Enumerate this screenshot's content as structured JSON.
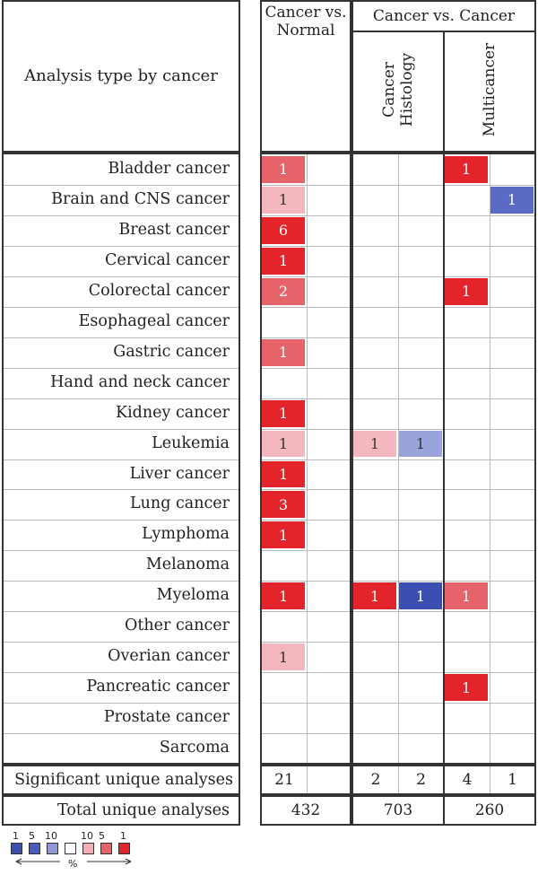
{
  "header": {
    "row_header": "Analysis type by cancer",
    "col_cancer_vs_normal": "Cancer vs. Normal",
    "col_cancer_vs_cancer": "Cancer vs. Cancer",
    "sub_cancer_histology": "Cancer Histology",
    "sub_multicancer": "Multicancer"
  },
  "rows": [
    {
      "label": "Bladder cancer",
      "cvn": "1",
      "hist_up": "",
      "hist_down": "",
      "multi_up": "1",
      "multi_down": ""
    },
    {
      "label": "Brain and CNS cancer",
      "cvn": "1",
      "hist_up": "",
      "hist_down": "",
      "multi_up": "",
      "multi_down": "1"
    },
    {
      "label": "Breast cancer",
      "cvn": "6",
      "hist_up": "",
      "hist_down": "",
      "multi_up": "",
      "multi_down": ""
    },
    {
      "label": "Cervical cancer",
      "cvn": "1",
      "hist_up": "",
      "hist_down": "",
      "multi_up": "",
      "multi_down": ""
    },
    {
      "label": "Colorectal cancer",
      "cvn": "2",
      "hist_up": "",
      "hist_down": "",
      "multi_up": "1",
      "multi_down": ""
    },
    {
      "label": "Esophageal cancer",
      "cvn": "",
      "hist_up": "",
      "hist_down": "",
      "multi_up": "",
      "multi_down": ""
    },
    {
      "label": "Gastric cancer",
      "cvn": "1",
      "hist_up": "",
      "hist_down": "",
      "multi_up": "",
      "multi_down": ""
    },
    {
      "label": "Hand and neck cancer",
      "cvn": "",
      "hist_up": "",
      "hist_down": "",
      "multi_up": "",
      "multi_down": ""
    },
    {
      "label": "Kidney cancer",
      "cvn": "1",
      "hist_up": "",
      "hist_down": "",
      "multi_up": "",
      "multi_down": ""
    },
    {
      "label": "Leukemia",
      "cvn": "1",
      "hist_up": "1",
      "hist_down": "1",
      "multi_up": "",
      "multi_down": ""
    },
    {
      "label": "Liver cancer",
      "cvn": "1",
      "hist_up": "",
      "hist_down": "",
      "multi_up": "",
      "multi_down": ""
    },
    {
      "label": "Lung cancer",
      "cvn": "3",
      "hist_up": "",
      "hist_down": "",
      "multi_up": "",
      "multi_down": ""
    },
    {
      "label": "Lymphoma",
      "cvn": "1",
      "hist_up": "",
      "hist_down": "",
      "multi_up": "",
      "multi_down": ""
    },
    {
      "label": "Melanoma",
      "cvn": "",
      "hist_up": "",
      "hist_down": "",
      "multi_up": "",
      "multi_down": ""
    },
    {
      "label": "Myeloma",
      "cvn": "1",
      "hist_up": "1",
      "hist_down": "1",
      "multi_up": "1",
      "multi_down": ""
    },
    {
      "label": "Other cancer",
      "cvn": "",
      "hist_up": "",
      "hist_down": "",
      "multi_up": "",
      "multi_down": ""
    },
    {
      "label": "Overian cancer",
      "cvn": "1",
      "hist_up": "",
      "hist_down": "",
      "multi_up": "",
      "multi_down": ""
    },
    {
      "label": "Pancreatic cancer",
      "cvn": "",
      "hist_up": "",
      "hist_down": "",
      "multi_up": "1",
      "multi_down": ""
    },
    {
      "label": "Prostate cancer",
      "cvn": "",
      "hist_up": "",
      "hist_down": "",
      "multi_up": "",
      "multi_down": ""
    },
    {
      "label": "Sarcoma",
      "cvn": "",
      "hist_up": "",
      "hist_down": "",
      "multi_up": "",
      "multi_down": ""
    }
  ],
  "colors": {
    "red_strong": "#e3242b",
    "red_medium": "#e7636a",
    "red_light": "#f4b7bd",
    "blue_strong": "#3b4fb3",
    "blue_medium": "#5b6ac4",
    "blue_light": "#9aa3dc"
  },
  "cell_shades": {
    "cvn": [
      "medium",
      "light",
      "strong",
      "strong",
      "medium",
      "",
      "medium",
      "",
      "strong",
      "light",
      "strong",
      "strong",
      "strong",
      "",
      "strong",
      "",
      "light",
      "",
      "",
      ""
    ],
    "hist_up": [
      "",
      "",
      "",
      "",
      "",
      "",
      "",
      "",
      "",
      "light",
      "",
      "",
      "",
      "",
      "strong",
      "",
      "",
      "",
      "",
      ""
    ],
    "hist_down": [
      "",
      "",
      "",
      "",
      "",
      "",
      "",
      "",
      "",
      "blue_light",
      "",
      "",
      "",
      "",
      "blue_strong",
      "",
      "",
      "",
      "",
      ""
    ],
    "multi_up": [
      "strong",
      "",
      "",
      "",
      "strong",
      "",
      "",
      "",
      "",
      "",
      "",
      "",
      "",
      "",
      "medium",
      "",
      "",
      "strong",
      "",
      ""
    ],
    "multi_down": [
      "",
      "blue_medium",
      "",
      "",
      "",
      "",
      "",
      "",
      "",
      "",
      "",
      "",
      "",
      "",
      "",
      "",
      "",
      "",
      "",
      ""
    ]
  },
  "summary": {
    "significant_label": "Significant unique analyses",
    "significant_cvn": "21",
    "significant_hist_up": "2",
    "significant_hist_down": "2",
    "significant_multi_up": "4",
    "significant_multi_down": "1",
    "total_label": "Total unique analyses",
    "total_cvn": "432",
    "total_hist": "703",
    "total_multi": "260"
  },
  "legend": {
    "labels": [
      "1",
      "5",
      "10",
      "10",
      "5",
      "1"
    ],
    "percent_label": "%",
    "colors": [
      "#3b4fb3",
      "#4b5bbd",
      "#8f98d6",
      "#ffffff",
      "#f3aeb4",
      "#e7636a",
      "#e3242b"
    ]
  }
}
